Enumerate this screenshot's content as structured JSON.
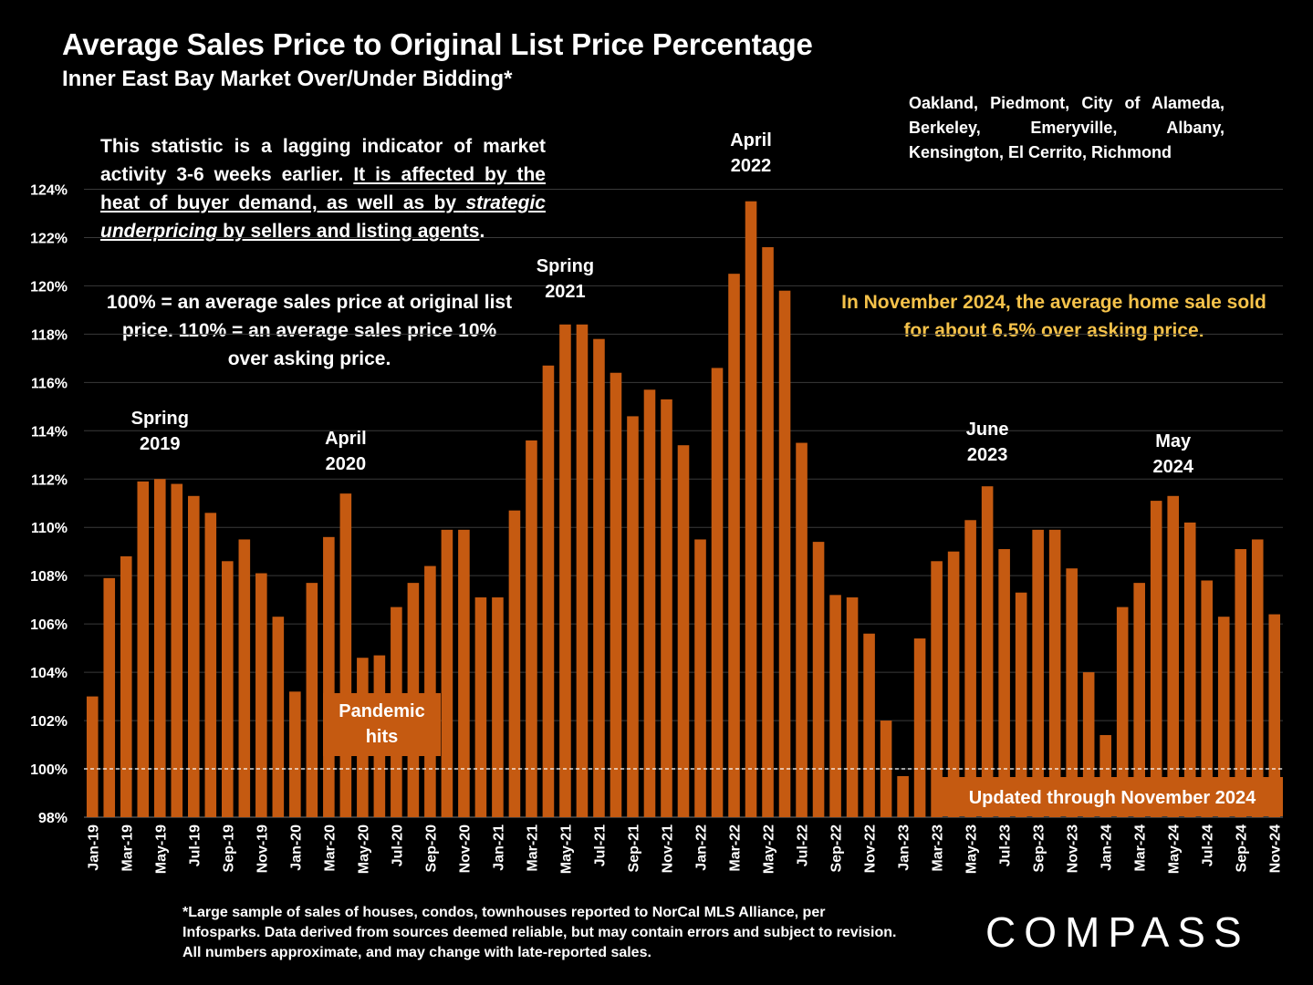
{
  "title": "Average Sales Price to Original List Price Percentage",
  "subtitle": "Inner East Bay Market Over/Under Bidding*",
  "cities": "Oakland, Piedmont, City of Alameda, Berkeley, Emeryville, Albany, Kensington, El Cerrito, Richmond",
  "note1": {
    "plain1": "This statistic is a lagging indicator of market activity 3-6 weeks earlier. ",
    "u1": "It is affected by the heat of buyer demand, as well as by ",
    "u_italic": "strategic underpricing",
    "u2": " by sellers and listing agents",
    "end": "."
  },
  "note2": "100% = an average sales price at original list price. 110% = an average sales price 10% over asking price.",
  "highlight": "In November 2024, the average home sale sold for about 6.5% over asking price.",
  "footnote": "*Large sample of sales of houses, condos, townhouses reported to NorCal MLS Alliance, per Infosparks. Data derived from sources deemed reliable, but may contain errors and subject to revision. All numbers approximate, and may change with late-reported sales.",
  "logo": "COMPASS",
  "colors": {
    "bar": "#c55a11",
    "background": "#000000",
    "highlight": "#f5c24a",
    "grid": "#3a3a3a"
  },
  "chart_data": {
    "type": "bar",
    "ylim": [
      98,
      125
    ],
    "yticks": [
      "98%",
      "100%",
      "102%",
      "104%",
      "106%",
      "108%",
      "110%",
      "112%",
      "114%",
      "116%",
      "118%",
      "120%",
      "122%",
      "124%"
    ],
    "reference_line": 100,
    "x_tick_labels": [
      "Jan-19",
      "Mar-19",
      "May-19",
      "Jul-19",
      "Sep-19",
      "Nov-19",
      "Jan-20",
      "Mar-20",
      "May-20",
      "Jul-20",
      "Sep-20",
      "Nov-20",
      "Jan-21",
      "Mar-21",
      "May-21",
      "Jul-21",
      "Sep-21",
      "Nov-21",
      "Jan-22",
      "Mar-22",
      "May-22",
      "Jul-22",
      "Sep-22",
      "Nov-22",
      "Jan-23",
      "Mar-23",
      "May-23",
      "Jul-23",
      "Sep-23",
      "Nov-23",
      "Jan-24",
      "Mar-24",
      "May-24",
      "Jul-24",
      "Sep-24",
      "Nov-24"
    ],
    "values": [
      103.0,
      107.9,
      108.8,
      111.9,
      112.0,
      111.8,
      111.3,
      110.6,
      108.6,
      109.5,
      108.1,
      106.3,
      103.2,
      107.7,
      109.6,
      111.4,
      104.6,
      104.7,
      106.7,
      107.7,
      108.4,
      109.9,
      109.9,
      107.1,
      107.1,
      110.7,
      113.6,
      116.7,
      118.4,
      118.4,
      117.8,
      116.4,
      114.6,
      115.7,
      115.3,
      113.4,
      109.5,
      116.6,
      120.5,
      123.5,
      121.6,
      119.8,
      113.5,
      109.4,
      107.2,
      107.1,
      105.6,
      102.0,
      99.7,
      105.4,
      108.6,
      109.0,
      110.3,
      111.7,
      109.1,
      107.3,
      109.9,
      109.9,
      108.3,
      104.0,
      101.4,
      106.7,
      107.7,
      111.1,
      111.3,
      110.2,
      107.8,
      106.3,
      109.1,
      109.5,
      106.4
    ],
    "annotations": [
      {
        "lines": [
          "Spring",
          "2019"
        ],
        "bar": 4
      },
      {
        "lines": [
          "April",
          "2020"
        ],
        "bar": 15
      },
      {
        "lines": [
          "Spring",
          "2021"
        ],
        "bar": 28
      },
      {
        "lines": [
          "April",
          "2022"
        ],
        "bar": 39
      },
      {
        "lines": [
          "June",
          "2023"
        ],
        "bar": 53
      },
      {
        "lines": [
          "May",
          "2024"
        ],
        "bar": 64
      }
    ],
    "boxes": [
      {
        "lines": [
          "Pandemic",
          "hits"
        ]
      },
      {
        "lines": [
          "Updated through November 2024"
        ]
      }
    ]
  }
}
